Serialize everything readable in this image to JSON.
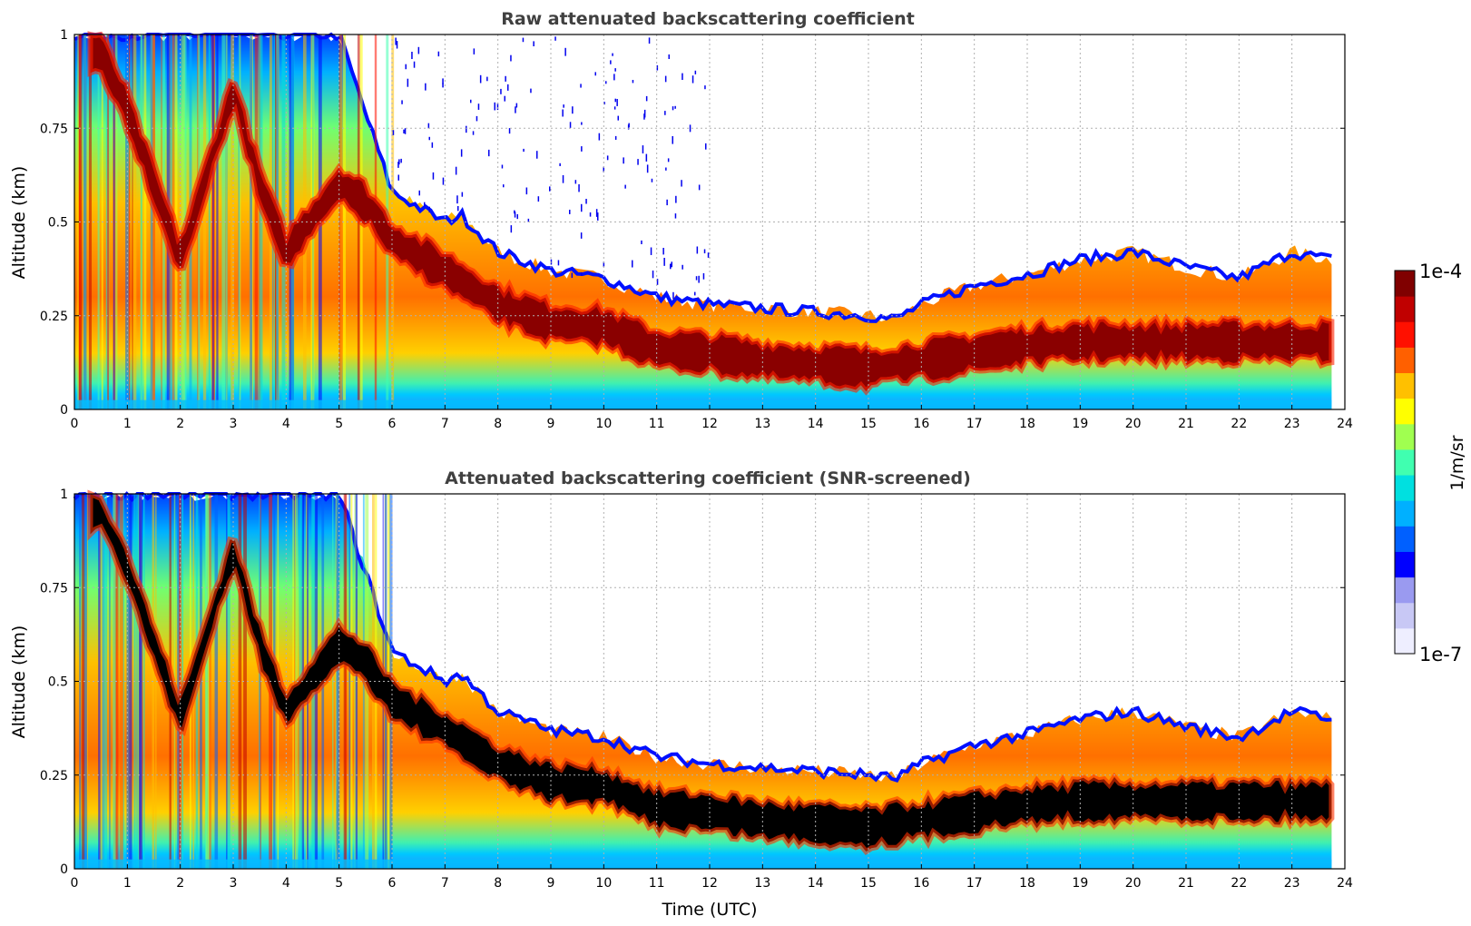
{
  "chart_data": [
    {
      "type": "heatmap",
      "title": "Raw attenuated backscattering coefficient",
      "xlabel": "",
      "ylabel": "Altitude (km)",
      "xlim": [
        0,
        24
      ],
      "ylim": [
        0,
        1
      ],
      "xticks": [
        "0",
        "1",
        "2",
        "3",
        "4",
        "5",
        "6",
        "7",
        "8",
        "9",
        "10",
        "11",
        "12",
        "13",
        "14",
        "15",
        "16",
        "17",
        "18",
        "19",
        "20",
        "21",
        "22",
        "23",
        "24"
      ],
      "yticks": [
        "0",
        "0.25",
        "0.5",
        "0.75",
        "1"
      ],
      "grid": true,
      "screened": false,
      "boundary_layer_top_km": {
        "x": [
          0,
          1,
          2,
          3,
          4,
          5,
          6,
          7,
          7.3,
          8,
          9,
          10,
          11,
          12,
          13,
          14,
          15,
          15.5,
          16,
          17,
          18,
          19,
          20,
          21,
          22,
          23,
          23.7
        ],
        "y": [
          1.0,
          1.0,
          1.0,
          1.0,
          1.0,
          1.0,
          0.58,
          0.5,
          0.52,
          0.42,
          0.37,
          0.35,
          0.3,
          0.28,
          0.27,
          0.26,
          0.25,
          0.24,
          0.28,
          0.33,
          0.36,
          0.4,
          0.42,
          0.38,
          0.35,
          0.42,
          0.4
        ]
      },
      "strong_layer_center_km": {
        "x": [
          0.5,
          1,
          1.5,
          2,
          3,
          3.5,
          4,
          5,
          5.5,
          6,
          7,
          8,
          9,
          10,
          11,
          12,
          13,
          14,
          15,
          16,
          17,
          18,
          19,
          20,
          21,
          22,
          23
        ],
        "y": [
          0.95,
          0.8,
          0.6,
          0.4,
          0.85,
          0.6,
          0.42,
          0.6,
          0.55,
          0.45,
          0.37,
          0.28,
          0.23,
          0.22,
          0.16,
          0.15,
          0.13,
          0.12,
          0.11,
          0.13,
          0.15,
          0.17,
          0.18,
          0.18,
          0.18,
          0.18,
          0.18
        ]
      }
    },
    {
      "type": "heatmap",
      "title": "Attenuated backscattering coefficient (SNR-screened)",
      "xlabel": "Time (UTC)",
      "ylabel": "Altitude (km)",
      "xlim": [
        0,
        24
      ],
      "ylim": [
        0,
        1
      ],
      "xticks": [
        "0",
        "1",
        "2",
        "3",
        "4",
        "5",
        "6",
        "7",
        "8",
        "9",
        "10",
        "11",
        "12",
        "13",
        "14",
        "15",
        "16",
        "17",
        "18",
        "19",
        "20",
        "21",
        "22",
        "23",
        "24"
      ],
      "yticks": [
        "0",
        "0.25",
        "0.5",
        "0.75",
        "1"
      ],
      "grid": true,
      "screened": true
    }
  ],
  "colorbar": {
    "label": "1/m/sr",
    "max_label": "1e-4",
    "min_label": "1e-7",
    "scale": "log",
    "range": [
      1e-07,
      0.0001
    ],
    "colormap": [
      "#eeeeff",
      "#c8c8f5",
      "#9a9af0",
      "#0000ff",
      "#0060ff",
      "#00b0ff",
      "#00e0e0",
      "#40ffb0",
      "#a0ff50",
      "#ffff00",
      "#ffc000",
      "#ff6000",
      "#ff1000",
      "#c00000",
      "#800000"
    ]
  }
}
